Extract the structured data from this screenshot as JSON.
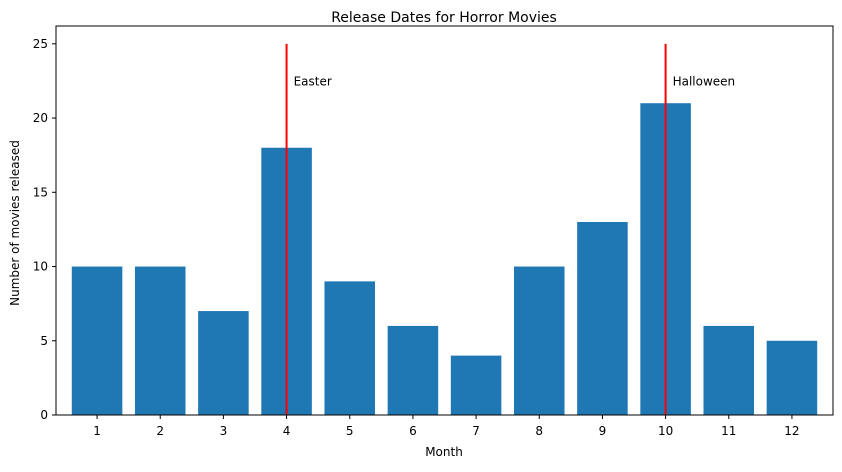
{
  "chart_data": {
    "type": "bar",
    "title": "Release Dates for Horror Movies",
    "xlabel": "Month",
    "ylabel": "Number of movies released",
    "categories": [
      "1",
      "2",
      "3",
      "4",
      "5",
      "6",
      "7",
      "8",
      "9",
      "10",
      "11",
      "12"
    ],
    "values": [
      10,
      10,
      7,
      18,
      9,
      6,
      4,
      10,
      13,
      21,
      6,
      5
    ],
    "ylim": [
      0,
      26.2
    ],
    "yticks": [
      0,
      5,
      10,
      15,
      20,
      25
    ],
    "bar_color": "#1f77b4",
    "grid": false,
    "annotations": [
      {
        "label": "Easter",
        "x": 4,
        "y_top": 25,
        "color": "#ff0000"
      },
      {
        "label": "Halloween",
        "x": 10,
        "y_top": 25,
        "color": "#ff0000"
      }
    ]
  }
}
